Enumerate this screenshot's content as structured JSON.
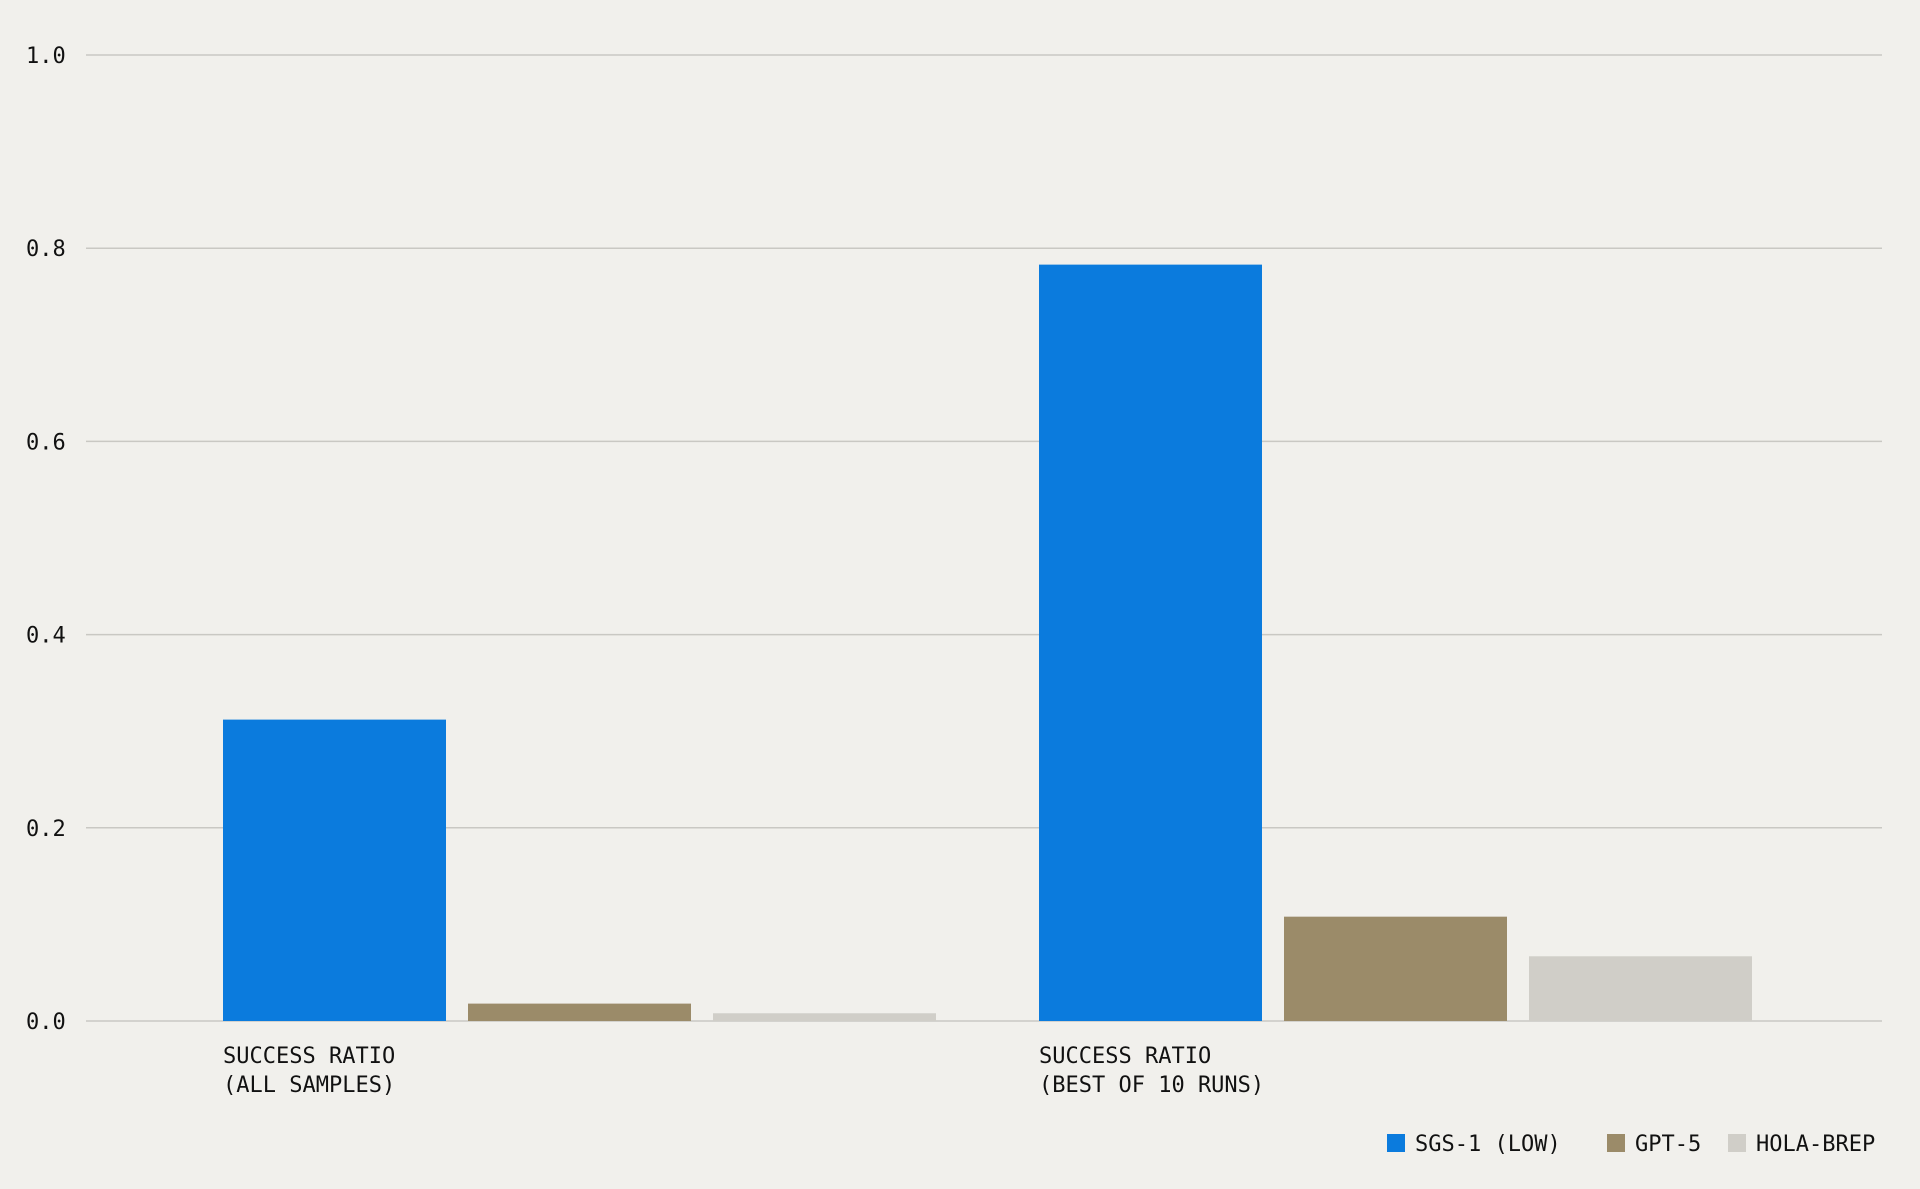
{
  "chart_data": {
    "type": "bar",
    "categories": [
      [
        "SUCCESS RATIO",
        "(ALL SAMPLES)"
      ],
      [
        "SUCCESS RATIO",
        "(BEST OF 10 RUNS)"
      ]
    ],
    "series": [
      {
        "name": "SGS-1 (LOW)",
        "color": "#0b7bdd",
        "values": [
          0.312,
          0.783
        ]
      },
      {
        "name": "GPT-5",
        "color": "#9b8b69",
        "values": [
          0.018,
          0.108
        ]
      },
      {
        "name": "HOLA-BREP",
        "color": "#d0cec8",
        "values": [
          0.008,
          0.067
        ]
      }
    ],
    "ylim": [
      0,
      1.0
    ],
    "yticks": [
      "0.0",
      "0.2",
      "0.4",
      "0.6",
      "0.8",
      "1.0"
    ],
    "grid": true,
    "legend_position": "bottom-right",
    "title": "",
    "xlabel": "",
    "ylabel": ""
  }
}
